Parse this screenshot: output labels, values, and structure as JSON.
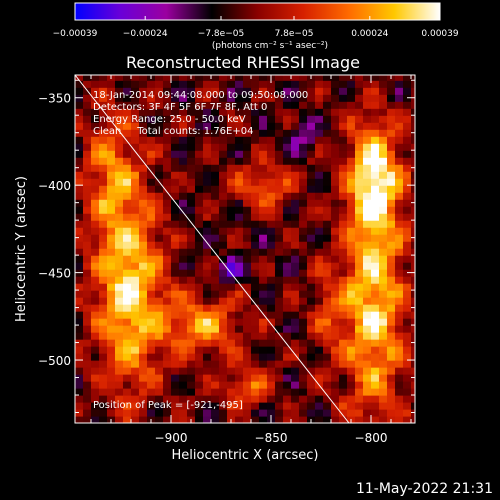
{
  "chart_data": {
    "type": "heatmap",
    "title": "Reconstructed RHESSI Image",
    "xlabel": "Heliocentric X (arcsec)",
    "ylabel": "Heliocentric Y (arcsec)",
    "xlim": [
      -948,
      -778
    ],
    "ylim": [
      -536,
      -337
    ],
    "x_ticks": [
      -900,
      -850,
      -800
    ],
    "x_tick_labels": [
      "−900",
      "−850",
      "−800"
    ],
    "y_ticks": [
      -350,
      -400,
      -450,
      -500
    ],
    "y_tick_labels": [
      "−350",
      "−400",
      "−450",
      "−500"
    ],
    "colorbar": {
      "min": -0.00039,
      "max": 0.00039,
      "ticks": [
        -0.00039,
        -0.00024,
        -7.8e-05,
        7.8e-05,
        0.00024,
        0.00039
      ],
      "tick_labels": [
        "−0.00039",
        "−0.00024",
        "−7.8e−05",
        "7.8e−05",
        "0.00024",
        "0.00039"
      ],
      "unit_label": "(photons cm⁻² s⁻¹ asec⁻²)",
      "colormap": [
        "#0000ff",
        "#6a00d8",
        "#9b00a0",
        "#000000",
        "#8a0000",
        "#d62000",
        "#ff6a00",
        "#ffc800",
        "#ffffff"
      ]
    },
    "annotations": {
      "time_range": "18-Jan-2014 09:44:08.000 to 09:50:08.000",
      "detectors": "Detectors: 3F 4F 5F 6F 7F 8F, Att 0",
      "energy_range": "Energy Range: 25.0 - 50.0 keV",
      "method": "Clean     Total counts: 1.76E+04",
      "peak": "Position of Peak = [-921,-495]"
    },
    "limb_line": {
      "x": [
        -948,
        -811
      ],
      "y": [
        -337,
        -536
      ]
    },
    "sources": [
      {
        "x": -798,
        "y": -395,
        "sx": 9,
        "sy": 22,
        "amp": 1.0
      },
      {
        "x": -799,
        "y": -470,
        "sx": 11,
        "sy": 45,
        "amp": 0.95
      },
      {
        "x": -921,
        "y": -460,
        "sx": 12,
        "sy": 40,
        "amp": 1.0
      },
      {
        "x": -930,
        "y": -390,
        "sx": 9,
        "sy": 25,
        "amp": 0.55
      },
      {
        "x": -885,
        "y": -480,
        "sx": 14,
        "sy": 12,
        "amp": 0.7
      },
      {
        "x": -862,
        "y": -515,
        "sx": 9,
        "sy": 8,
        "amp": 0.6
      },
      {
        "x": -853,
        "y": -400,
        "sx": 10,
        "sy": 10,
        "amp": 0.55
      },
      {
        "x": -822,
        "y": -470,
        "sx": 6,
        "sy": 18,
        "amp": 0.35
      },
      {
        "x": -870,
        "y": -448,
        "sx": 5,
        "sy": 5,
        "amp": -0.5
      },
      {
        "x": -835,
        "y": -372,
        "sx": 5,
        "sy": 6,
        "amp": -0.45
      }
    ]
  },
  "footer": {
    "timestamp": "11-May-2022 21:31"
  }
}
